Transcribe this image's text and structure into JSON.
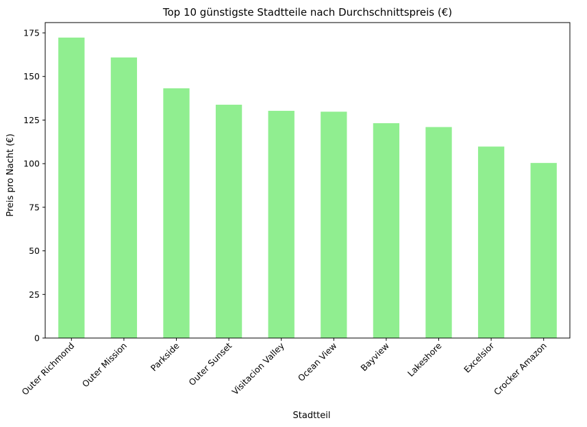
{
  "chart_data": {
    "type": "bar",
    "title": "Top 10 günstigste Stadtteile nach Durchschnittspreis (€)",
    "xlabel": "Stadtteil",
    "ylabel": "Preis pro Nacht (€)",
    "categories": [
      "Outer Richmond",
      "Outer Mission",
      "Parkside",
      "Outer Sunset",
      "Visitacion Valley",
      "Ocean View",
      "Bayview",
      "Lakeshore",
      "Excelsior",
      "Crocker Amazon"
    ],
    "values": [
      172.3,
      160.9,
      143.2,
      133.8,
      130.3,
      129.8,
      123.2,
      121.0,
      109.8,
      100.4
    ],
    "yticks": [
      0,
      25,
      50,
      75,
      100,
      125,
      150,
      175
    ],
    "ylim": [
      0,
      180.9
    ],
    "bar_color": "#90ee90",
    "grid": false,
    "legend": "none"
  }
}
